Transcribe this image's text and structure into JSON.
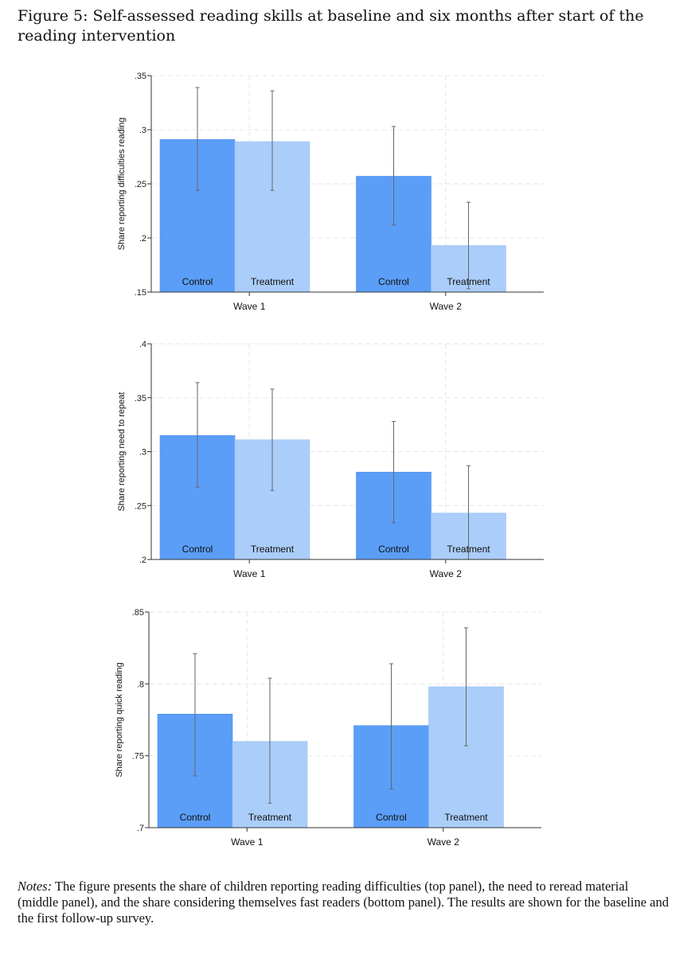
{
  "figure": {
    "title": "Figure 5: Self-assessed reading skills at baseline and six months after start of the reading intervention",
    "notes_label": "Notes:",
    "notes_text": " The figure presents the share of children reporting reading difficulties (top panel), the need to reread material (middle panel), and the share considering themselves fast readers (bottom panel). The results are shown for the baseline and the first follow-up survey."
  },
  "colors": {
    "control": "#5b9ef8",
    "treatment": "#abcdfa",
    "error_bar": "#666666",
    "grid": "#e6e6e6",
    "axis": "#333333"
  },
  "chart_data": [
    {
      "type": "bar",
      "ylabel": "Share reporting difficulties reading",
      "ylim": [
        0.15,
        0.35
      ],
      "yticks": [
        0.15,
        0.2,
        0.25,
        0.3,
        0.35
      ],
      "ytick_labels": [
        ".15",
        ".2",
        ".25",
        ".3",
        ".35"
      ],
      "categories": [
        "Wave 1",
        "Wave 2"
      ],
      "series": [
        {
          "name": "Control",
          "values": [
            0.291,
            0.257
          ],
          "ci_low": [
            0.244,
            0.212
          ],
          "ci_high": [
            0.339,
            0.303
          ]
        },
        {
          "name": "Treatment",
          "values": [
            0.289,
            0.193
          ],
          "ci_low": [
            0.244,
            0.153
          ],
          "ci_high": [
            0.336,
            0.233
          ]
        }
      ]
    },
    {
      "type": "bar",
      "ylabel": "Share reporting need to repeat",
      "ylim": [
        0.2,
        0.4
      ],
      "yticks": [
        0.2,
        0.25,
        0.3,
        0.35,
        0.4
      ],
      "ytick_labels": [
        ".2",
        ".25",
        ".3",
        ".35",
        ".4"
      ],
      "categories": [
        "Wave 1",
        "Wave 2"
      ],
      "series": [
        {
          "name": "Control",
          "values": [
            0.315,
            0.281
          ],
          "ci_low": [
            0.267,
            0.234
          ],
          "ci_high": [
            0.364,
            0.328
          ]
        },
        {
          "name": "Treatment",
          "values": [
            0.311,
            0.243
          ],
          "ci_low": [
            0.264,
            0.2
          ],
          "ci_high": [
            0.358,
            0.287
          ]
        }
      ]
    },
    {
      "type": "bar",
      "ylabel": "Share reporting quick reading",
      "ylim": [
        0.7,
        0.85
      ],
      "yticks": [
        0.7,
        0.75,
        0.8,
        0.85
      ],
      "ytick_labels": [
        ".7",
        ".75",
        ".8",
        ".85"
      ],
      "categories": [
        "Wave 1",
        "Wave 2"
      ],
      "series": [
        {
          "name": "Control",
          "values": [
            0.779,
            0.771
          ],
          "ci_low": [
            0.736,
            0.727
          ],
          "ci_high": [
            0.821,
            0.814
          ]
        },
        {
          "name": "Treatment",
          "values": [
            0.76,
            0.798
          ],
          "ci_low": [
            0.717,
            0.757
          ],
          "ci_high": [
            0.804,
            0.839
          ]
        }
      ]
    }
  ]
}
